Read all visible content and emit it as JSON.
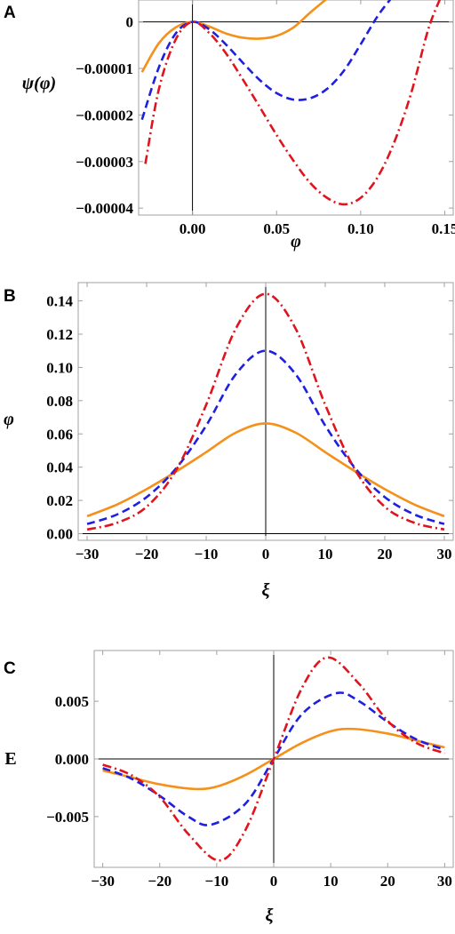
{
  "colors": {
    "orange": "#f5901a",
    "blue": "#1f1fe0",
    "red": "#e0141c",
    "frame": "#a0a0a0",
    "axis": "#000000"
  },
  "series_styles": [
    "solid",
    "dashed",
    "dash-dot"
  ],
  "chart_data": [
    {
      "type": "line",
      "panel_label": "A",
      "xlabel": "φ",
      "ylabel": "ψ(φ)",
      "xlim": [
        -0.032,
        0.155
      ],
      "ylim": [
        -4.15e-05,
        4.7e-06
      ],
      "xticks": [
        0.0,
        0.05,
        0.1,
        0.15
      ],
      "xtick_labels": [
        "0.00",
        "0.05",
        "0.10",
        "0.15"
      ],
      "yticks": [
        0,
        -1e-05,
        -2e-05,
        -3e-05,
        -4e-05
      ],
      "ytick_labels": [
        "0",
        "−0.00001",
        "−0.00002",
        "−0.00003",
        "−0.00004"
      ],
      "grid": false,
      "series": [
        {
          "color": "orange",
          "style": "solid",
          "x": [
            -0.03,
            -0.02,
            -0.01,
            0.0,
            0.01,
            0.02,
            0.03,
            0.04,
            0.05,
            0.06,
            0.07,
            0.08
          ],
          "y": [
            -1.08e-05,
            -4.6e-06,
            -1.2e-06,
            0.0,
            -1e-06,
            -2.5e-06,
            -3.4e-06,
            -3.6e-06,
            -3e-06,
            -1.2e-06,
            2e-06,
            5e-06
          ]
        },
        {
          "color": "blue",
          "style": "dashed",
          "x": [
            -0.03,
            -0.02,
            -0.01,
            0.0,
            0.01,
            0.02,
            0.03,
            0.04,
            0.05,
            0.06,
            0.07,
            0.08,
            0.09,
            0.1,
            0.11,
            0.118
          ],
          "y": [
            -2.1e-05,
            -9.8e-06,
            -2.5e-06,
            0.0,
            -1.6e-06,
            -4.9e-06,
            -8.8e-06,
            -1.25e-05,
            -1.53e-05,
            -1.67e-05,
            -1.64e-05,
            -1.44e-05,
            -1.05e-05,
            -4.8e-06,
            1.2e-06,
            5e-06
          ]
        },
        {
          "color": "red",
          "style": "dash-dot",
          "x": [
            -0.028,
            -0.02,
            -0.01,
            0.0,
            0.01,
            0.02,
            0.03,
            0.04,
            0.05,
            0.06,
            0.07,
            0.08,
            0.09,
            0.1,
            0.11,
            0.12,
            0.13,
            0.14,
            0.147
          ],
          "y": [
            -3.05e-05,
            -1.45e-05,
            -3.8e-06,
            0.0,
            -2.4e-06,
            -6.8e-06,
            -1.24e-05,
            -1.83e-05,
            -2.43e-05,
            -2.98e-05,
            -3.46e-05,
            -3.78e-05,
            -3.92e-05,
            -3.78e-05,
            -3.34e-05,
            -2.58e-05,
            -1.53e-05,
            -1.8e-06,
            4.8e-06
          ]
        }
      ]
    },
    {
      "type": "line",
      "panel_label": "B",
      "xlabel": "ξ",
      "ylabel": "φ",
      "xlim": [
        -31.5,
        31.5
      ],
      "ylim": [
        -0.004,
        0.151
      ],
      "xticks": [
        -30,
        -20,
        -10,
        0,
        10,
        20,
        30
      ],
      "xtick_labels": [
        "−30",
        "−20",
        "−10",
        "0",
        "10",
        "20",
        "30"
      ],
      "yticks": [
        0.0,
        0.02,
        0.04,
        0.06,
        0.08,
        0.1,
        0.12,
        0.14
      ],
      "ytick_labels": [
        "0.00",
        "0.02",
        "0.04",
        "0.06",
        "0.08",
        "0.10",
        "0.12",
        "0.14"
      ],
      "grid": false,
      "series": [
        {
          "color": "orange",
          "style": "solid",
          "x": [
            -30,
            -25,
            -20,
            -15,
            -10,
            -5,
            0,
            5,
            10,
            15,
            20,
            25,
            30
          ],
          "y": [
            0.0105,
            0.0175,
            0.0268,
            0.0375,
            0.049,
            0.0608,
            0.0663,
            0.0608,
            0.049,
            0.0375,
            0.0268,
            0.0175,
            0.0105
          ]
        },
        {
          "color": "blue",
          "style": "dashed",
          "x": [
            -30,
            -25,
            -20,
            -15,
            -10,
            -5,
            0,
            5,
            10,
            15,
            20,
            25,
            30
          ],
          "y": [
            0.0058,
            0.0115,
            0.022,
            0.0395,
            0.065,
            0.096,
            0.11,
            0.096,
            0.065,
            0.0395,
            0.022,
            0.0115,
            0.0058
          ]
        },
        {
          "color": "red",
          "style": "dash-dot",
          "x": [
            -30,
            -25,
            -20,
            -15,
            -10,
            -5,
            0,
            5,
            10,
            15,
            20,
            25,
            30
          ],
          "y": [
            0.0025,
            0.0065,
            0.0162,
            0.0385,
            0.0775,
            0.1235,
            0.1442,
            0.1235,
            0.0775,
            0.0385,
            0.0162,
            0.0065,
            0.0025
          ]
        }
      ]
    },
    {
      "type": "line",
      "panel_label": "C",
      "xlabel": "ξ",
      "ylabel": "E",
      "xlim": [
        -31.5,
        31.5
      ],
      "ylim": [
        -0.0094,
        0.0094
      ],
      "xticks": [
        -30,
        -20,
        -10,
        0,
        10,
        20,
        30
      ],
      "xtick_labels": [
        "−30",
        "−20",
        "−10",
        "0",
        "10",
        "20",
        "30"
      ],
      "yticks": [
        0.005,
        0.0,
        -0.005
      ],
      "ytick_labels": [
        "0.005",
        "0.000",
        "−0.005"
      ],
      "grid": false,
      "series": [
        {
          "color": "orange",
          "style": "solid",
          "x": [
            -30,
            -25,
            -20,
            -14,
            -10,
            -5,
            0,
            5,
            10,
            14,
            20,
            25,
            30
          ],
          "y": [
            -0.001,
            -0.0016,
            -0.0022,
            -0.0026,
            -0.0024,
            -0.0014,
            0.0,
            0.0014,
            0.0024,
            0.0026,
            0.0022,
            0.0016,
            0.001
          ]
        },
        {
          "color": "blue",
          "style": "dashed",
          "x": [
            -30,
            -25,
            -20,
            -15,
            -11,
            -5,
            0,
            5,
            11,
            15,
            20,
            25,
            30
          ],
          "y": [
            -0.0008,
            -0.0017,
            -0.0032,
            -0.005,
            -0.0057,
            -0.0039,
            0.0,
            0.0039,
            0.0057,
            0.005,
            0.0032,
            0.0017,
            0.0008
          ]
        },
        {
          "color": "red",
          "style": "dash-dot",
          "x": [
            -30,
            -25,
            -20,
            -15,
            -9.5,
            -5,
            0,
            5,
            9.5,
            15,
            20,
            25,
            30
          ],
          "y": [
            -0.0005,
            -0.0014,
            -0.0033,
            -0.0065,
            -0.0088,
            -0.0062,
            0.0,
            0.0062,
            0.0088,
            0.0065,
            0.0033,
            0.0014,
            0.0005
          ]
        }
      ]
    }
  ]
}
